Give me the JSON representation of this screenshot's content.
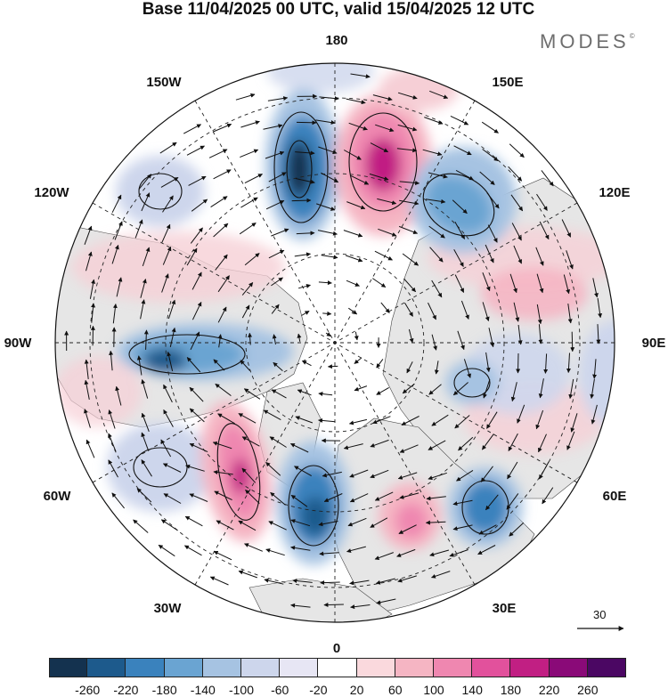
{
  "header": {
    "title": "Base 11/04/2025 00 UTC, valid 15/04/2025 12 UTC",
    "brand": "MODES",
    "brand_mark": "©"
  },
  "map": {
    "projection": "north-polar-stereographic",
    "longitude_labels": [
      "180",
      "150E",
      "120E",
      "90E",
      "60E",
      "30E",
      "0",
      "30W",
      "60W",
      "90W",
      "120W",
      "150W"
    ],
    "land_color": "#e8e8e8",
    "ocean_color": "#ffffff"
  },
  "reference_vector": {
    "label": "30"
  },
  "colorbar": {
    "colors": [
      "#14324f",
      "#1d5a8c",
      "#3a82bd",
      "#6aa4d2",
      "#a6c3e2",
      "#cdd6ec",
      "#e7e6f4",
      "#ffffff",
      "#fad9dd",
      "#f5b5c3",
      "#ef87b0",
      "#e2519c",
      "#c11f83",
      "#8a0a78",
      "#4b0763"
    ],
    "tick_labels": [
      "-260",
      "-220",
      "-180",
      "-140",
      "-100",
      "-60",
      "-20",
      "20",
      "60",
      "100",
      "140",
      "180",
      "220",
      "260"
    ]
  }
}
